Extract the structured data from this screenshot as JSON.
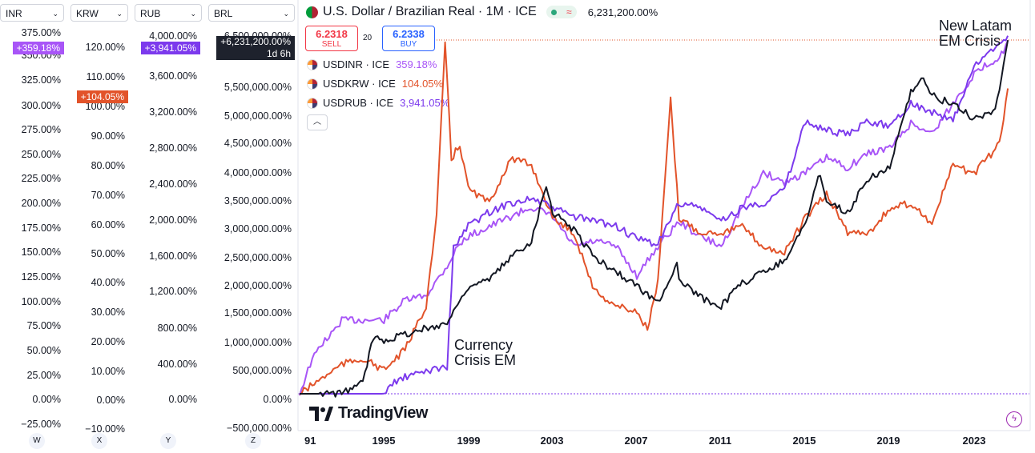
{
  "scales": [
    {
      "id": "INR",
      "label": "INR",
      "ticks": [
        "375.00%",
        "350.00%",
        "325.00%",
        "300.00%",
        "275.00%",
        "250.00%",
        "225.00%",
        "200.00%",
        "175.00%",
        "150.00%",
        "125.00%",
        "100.00%",
        "75.00%",
        "50.00%",
        "25.00%",
        "0.00%",
        "−25.00%"
      ],
      "badge": "+359.18%",
      "badge_color": "#a855f7",
      "axis_letter": "W"
    },
    {
      "id": "KRW",
      "label": "KRW",
      "ticks": [
        "120.00%",
        "110.00%",
        "100.00%",
        "90.00%",
        "80.00%",
        "70.00%",
        "60.00%",
        "50.00%",
        "40.00%",
        "30.00%",
        "20.00%",
        "10.00%",
        "0.00%",
        "−10.00%"
      ],
      "badge": "+104.05%",
      "badge_color": "#e2532a",
      "axis_letter": "X"
    },
    {
      "id": "RUB",
      "label": "RUB",
      "ticks": [
        "4,000.00%",
        "3,600.00%",
        "3,200.00%",
        "2,800.00%",
        "2,400.00%",
        "2,000.00%",
        "1,600.00%",
        "1,200.00%",
        "800.00%",
        "400.00%",
        "0.00%"
      ],
      "badge": "+3,941.05%",
      "badge_color": "#7c3aed",
      "axis_letter": "Y"
    },
    {
      "id": "BRL",
      "label": "BRL",
      "ticks": [
        "6,500,000.00%",
        "5,500,000.00%",
        "5,000,000.00%",
        "4,500,000.00%",
        "4,000,000.00%",
        "3,500,000.00%",
        "3,000,000.00%",
        "2,500,000.00%",
        "2,000,000.00%",
        "1,500,000.00%",
        "1,000,000.00%",
        "500,000.00%",
        "0.00%",
        "−500,000.00%"
      ],
      "badge": "+6,231,200.00%",
      "badge_sub": "1d 6h",
      "badge_color": "#1e222d",
      "axis_letter": "Z"
    }
  ],
  "header": {
    "title": "U.S. Dollar / Brazilian Real · 1M · ICE",
    "value": "6,231,200.00%",
    "sell_price": "6.2318",
    "sell_label": "SELL",
    "spread": "20",
    "buy_price": "6.2338",
    "buy_label": "BUY"
  },
  "legend": [
    {
      "name": "USDINR · ICE",
      "value": "359.18%",
      "color": "#a855f7"
    },
    {
      "name": "USDKRW · ICE",
      "value": "104.05%",
      "color": "#e2532a"
    },
    {
      "name": "USDRUB · ICE",
      "value": "3,941.05%",
      "color": "#7c3aed"
    }
  ],
  "annotations": {
    "crisis1": [
      "Currency",
      "Crisis EM"
    ],
    "crisis2": [
      "New Latam",
      "EM Crisis"
    ]
  },
  "brand": "TradingView",
  "chart_data": {
    "type": "line",
    "x_ticks": [
      "91",
      "1995",
      "1999",
      "2003",
      "2007",
      "2011",
      "2015",
      "2019",
      "2023"
    ],
    "series": [
      {
        "name": "USDINR",
        "color": "#a855f7",
        "axis": "INR",
        "points": [
          [
            1991,
            0
          ],
          [
            1991.5,
            30
          ],
          [
            1992,
            50
          ],
          [
            1992.5,
            60
          ],
          [
            1993,
            75
          ],
          [
            1995,
            75
          ],
          [
            1995.5,
            85
          ],
          [
            1996,
            95
          ],
          [
            1997,
            100
          ],
          [
            1998,
            130
          ],
          [
            1998.5,
            150
          ],
          [
            1999,
            160
          ],
          [
            2000,
            170
          ],
          [
            2001,
            180
          ],
          [
            2002,
            190
          ],
          [
            2003,
            180
          ],
          [
            2004,
            150
          ],
          [
            2005,
            155
          ],
          [
            2006,
            150
          ],
          [
            2007,
            120
          ],
          [
            2008,
            150
          ],
          [
            2009,
            175
          ],
          [
            2010,
            160
          ],
          [
            2011,
            150
          ],
          [
            2011.5,
            170
          ],
          [
            2012,
            190
          ],
          [
            2013,
            225
          ],
          [
            2014,
            215
          ],
          [
            2015,
            225
          ],
          [
            2016,
            240
          ],
          [
            2017,
            230
          ],
          [
            2018,
            245
          ],
          [
            2019,
            250
          ],
          [
            2020,
            275
          ],
          [
            2021,
            265
          ],
          [
            2022,
            295
          ],
          [
            2023,
            325
          ],
          [
            2024.3,
            345
          ],
          [
            2024.6,
            359.18
          ]
        ]
      },
      {
        "name": "USDKRW",
        "color": "#e2532a",
        "axis": "KRW",
        "points": [
          [
            1991,
            0
          ],
          [
            1992,
            5
          ],
          [
            1993,
            10
          ],
          [
            1994,
            12
          ],
          [
            1995,
            8
          ],
          [
            1996,
            15
          ],
          [
            1997,
            30
          ],
          [
            1997.5,
            60
          ],
          [
            1997.9,
            120
          ],
          [
            1998.2,
            80
          ],
          [
            1998.6,
            85
          ],
          [
            1999,
            70
          ],
          [
            2000,
            65
          ],
          [
            2001,
            80
          ],
          [
            2002,
            78
          ],
          [
            2003,
            60
          ],
          [
            2004,
            55
          ],
          [
            2005,
            35
          ],
          [
            2006,
            30
          ],
          [
            2007,
            28
          ],
          [
            2007.5,
            22
          ],
          [
            2008,
            38
          ],
          [
            2008.6,
            100
          ],
          [
            2009,
            60
          ],
          [
            2010,
            55
          ],
          [
            2011,
            55
          ],
          [
            2012,
            57
          ],
          [
            2013,
            50
          ],
          [
            2014,
            48
          ],
          [
            2015,
            60
          ],
          [
            2016,
            68
          ],
          [
            2017,
            55
          ],
          [
            2018,
            55
          ],
          [
            2019,
            63
          ],
          [
            2020,
            65
          ],
          [
            2021,
            58
          ],
          [
            2022,
            78
          ],
          [
            2023,
            75
          ],
          [
            2024.2,
            85
          ],
          [
            2024.6,
            104.05
          ]
        ]
      },
      {
        "name": "USDRUB",
        "color": "#7c3aed",
        "axis": "RUB",
        "points": [
          [
            1991,
            0
          ],
          [
            1992,
            0
          ],
          [
            1993,
            0
          ],
          [
            1994,
            0
          ],
          [
            1995,
            0
          ],
          [
            1995.5,
            130
          ],
          [
            1996,
            180
          ],
          [
            1997,
            250
          ],
          [
            1998,
            300
          ],
          [
            1998.3,
            1600
          ],
          [
            1999,
            1850
          ],
          [
            2000,
            2000
          ],
          [
            2001,
            2100
          ],
          [
            2002,
            2150
          ],
          [
            2003,
            2050
          ],
          [
            2004,
            1950
          ],
          [
            2005,
            1900
          ],
          [
            2006,
            1850
          ],
          [
            2007,
            1700
          ],
          [
            2008,
            1650
          ],
          [
            2009,
            2100
          ],
          [
            2010,
            2050
          ],
          [
            2011,
            1900
          ],
          [
            2012,
            2050
          ],
          [
            2013,
            2100
          ],
          [
            2014,
            2250
          ],
          [
            2015,
            3000
          ],
          [
            2016,
            2900
          ],
          [
            2017,
            2850
          ],
          [
            2018,
            3000
          ],
          [
            2019,
            2950
          ],
          [
            2020,
            3200
          ],
          [
            2021,
            3100
          ],
          [
            2022,
            3000
          ],
          [
            2023,
            3600
          ],
          [
            2024.6,
            3941.05
          ]
        ]
      },
      {
        "name": "USDBRL",
        "color": "#131722",
        "axis": "BRL",
        "points": [
          [
            1991,
            0
          ],
          [
            1992,
            0
          ],
          [
            1993,
            5000
          ],
          [
            1994,
            200000
          ],
          [
            1994.5,
            1000000
          ],
          [
            1995,
            950000
          ],
          [
            1996,
            1050000
          ],
          [
            1997,
            1150000
          ],
          [
            1998,
            1250000
          ],
          [
            1999,
            1900000
          ],
          [
            2000,
            2000000
          ],
          [
            2001,
            2400000
          ],
          [
            2002,
            2700000
          ],
          [
            2002.7,
            3700000
          ],
          [
            2003,
            3200000
          ],
          [
            2004,
            2900000
          ],
          [
            2005,
            2400000
          ],
          [
            2006,
            2150000
          ],
          [
            2007,
            1900000
          ],
          [
            2008,
            1600000
          ],
          [
            2008.9,
            2300000
          ],
          [
            2009,
            2000000
          ],
          [
            2010,
            1700000
          ],
          [
            2011,
            1550000
          ],
          [
            2012,
            1950000
          ],
          [
            2013,
            2150000
          ],
          [
            2014,
            2350000
          ],
          [
            2015,
            3000000
          ],
          [
            2015.7,
            3900000
          ],
          [
            2016,
            3400000
          ],
          [
            2017,
            3200000
          ],
          [
            2018,
            3800000
          ],
          [
            2019,
            4000000
          ],
          [
            2020,
            5300000
          ],
          [
            2020.5,
            5600000
          ],
          [
            2021,
            5250000
          ],
          [
            2022,
            5100000
          ],
          [
            2023,
            4850000
          ],
          [
            2024,
            5000000
          ],
          [
            2024.6,
            6231200
          ]
        ]
      }
    ]
  }
}
